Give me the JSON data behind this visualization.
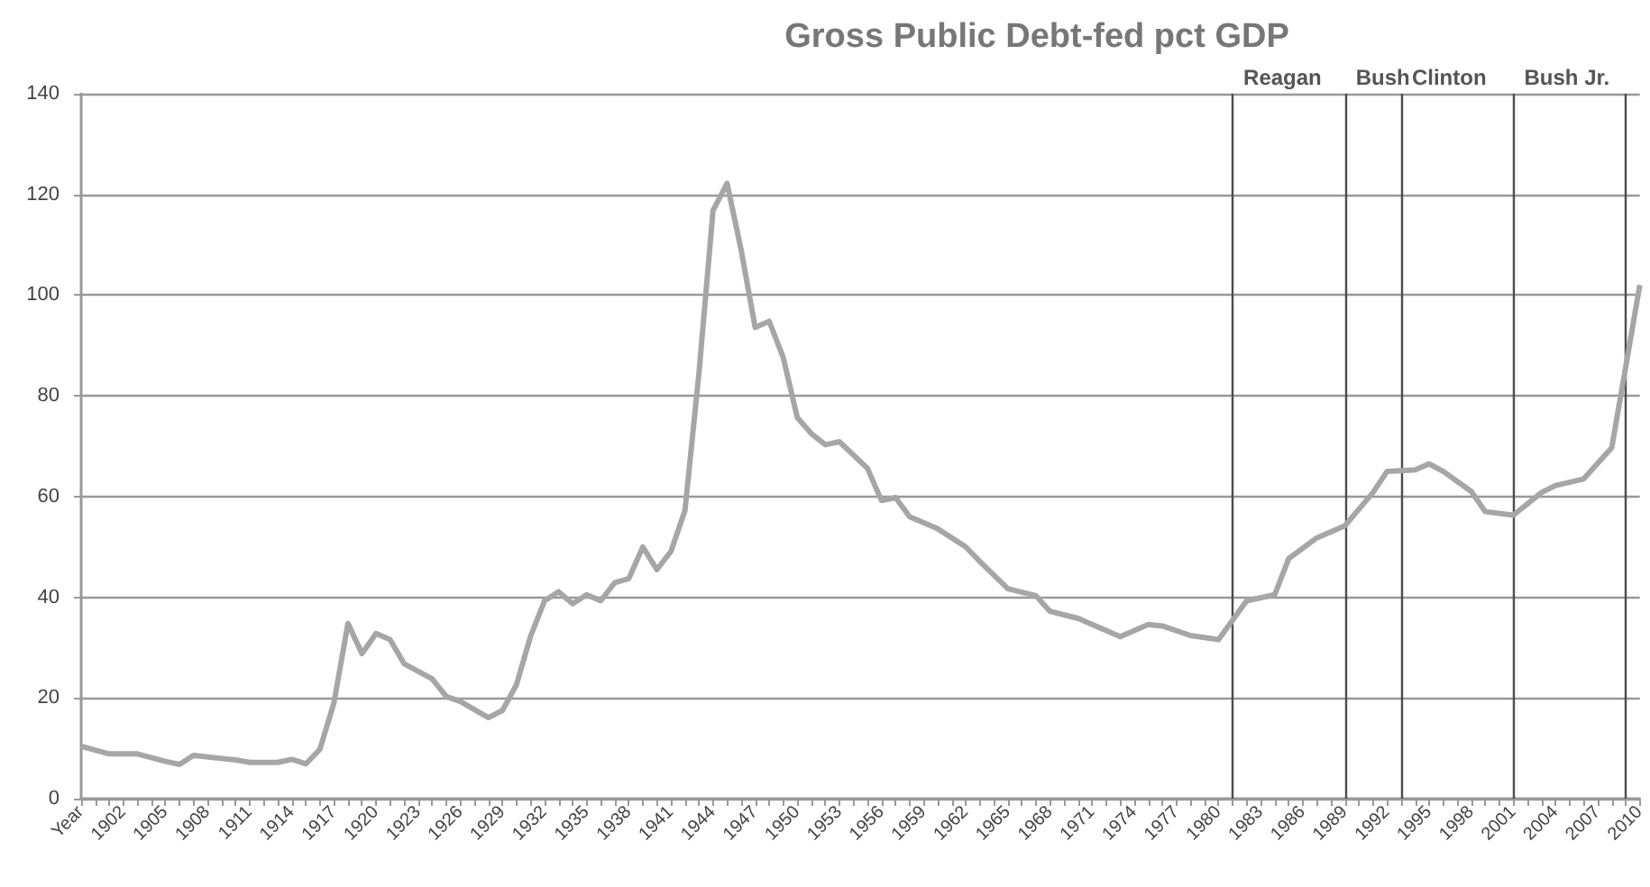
{
  "chart_data": {
    "type": "line",
    "title": "Gross Public Debt-fed pct GDP",
    "x": [
      1899,
      1901,
      1903,
      1905,
      1906,
      1907,
      1910,
      1911,
      1913,
      1914,
      1915,
      1916,
      1917,
      1918,
      1919,
      1920,
      1921,
      1922,
      1924,
      1925,
      1926,
      1928,
      1929,
      1930,
      1931,
      1932,
      1933,
      1934,
      1935,
      1936,
      1937,
      1938,
      1939,
      1940,
      1941,
      1942,
      1943,
      1944,
      1945,
      1946,
      1947,
      1948,
      1949,
      1950,
      1951,
      1952,
      1953,
      1955,
      1956,
      1957,
      1958,
      1960,
      1962,
      1963,
      1965,
      1967,
      1968,
      1970,
      1973,
      1975,
      1976,
      1978,
      1980,
      1982,
      1984,
      1985,
      1987,
      1989,
      1991,
      1992,
      1994,
      1995,
      1996,
      1998,
      1999,
      2001,
      2003,
      2004,
      2006,
      2008,
      2009,
      2010
    ],
    "series": [
      {
        "color": "#a6a6a6",
        "values": [
          10.4,
          8.9,
          8.9,
          7.4,
          6.8,
          8.6,
          7.7,
          7.2,
          7.2,
          7.8,
          6.9,
          9.8,
          19,
          34.8,
          28.8,
          32.8,
          31.6,
          26.8,
          23.8,
          20.3,
          19.3,
          16.1,
          17.5,
          22.6,
          32.2,
          39.3,
          41.1,
          38.7,
          40.5,
          39.3,
          42.9,
          43.7,
          50,
          45.5,
          49.1,
          57.2,
          84.6,
          116.8,
          122.2,
          109,
          93.6,
          94.8,
          87.6,
          75.7,
          72.5,
          70.3,
          70.9,
          65.6,
          59.2,
          59.8,
          56,
          53.6,
          50,
          47.1,
          41.7,
          40.3,
          37.2,
          35.8,
          32.2,
          34.6,
          34.3,
          32.4,
          31.6,
          39.3,
          40.5,
          47.7,
          51.8,
          54.2,
          60.8,
          65,
          65.3,
          66.5,
          65,
          61,
          57,
          56.3,
          60.8,
          62.2,
          63.5,
          69.7,
          85.8,
          102
        ]
      }
    ],
    "xlim": [
      1899,
      2010
    ],
    "xticks": [
      {
        "value": 1899,
        "label": "Year"
      },
      {
        "value": 1900,
        "label": null
      },
      {
        "value": 1901,
        "label": null
      },
      1902,
      {
        "value": 1903,
        "label": null
      },
      {
        "value": 1904,
        "label": null
      },
      1905,
      {
        "value": 1906,
        "label": null
      },
      {
        "value": 1907,
        "label": null
      },
      1908,
      {
        "value": 1909,
        "label": null
      },
      {
        "value": 1910,
        "label": null
      },
      1911,
      {
        "value": 1912,
        "label": null
      },
      {
        "value": 1913,
        "label": null
      },
      1914,
      {
        "value": 1915,
        "label": null
      },
      {
        "value": 1916,
        "label": null
      },
      1917,
      {
        "value": 1918,
        "label": null
      },
      {
        "value": 1919,
        "label": null
      },
      1920,
      {
        "value": 1921,
        "label": null
      },
      {
        "value": 1922,
        "label": null
      },
      1923,
      {
        "value": 1924,
        "label": null
      },
      {
        "value": 1925,
        "label": null
      },
      1926,
      {
        "value": 1927,
        "label": null
      },
      {
        "value": 1928,
        "label": null
      },
      1929,
      {
        "value": 1930,
        "label": null
      },
      {
        "value": 1931,
        "label": null
      },
      1932,
      {
        "value": 1933,
        "label": null
      },
      {
        "value": 1934,
        "label": null
      },
      1935,
      {
        "value": 1936,
        "label": null
      },
      {
        "value": 1937,
        "label": null
      },
      1938,
      {
        "value": 1939,
        "label": null
      },
      {
        "value": 1940,
        "label": null
      },
      1941,
      {
        "value": 1942,
        "label": null
      },
      {
        "value": 1943,
        "label": null
      },
      1944,
      {
        "value": 1945,
        "label": null
      },
      {
        "value": 1946,
        "label": null
      },
      1947,
      {
        "value": 1948,
        "label": null
      },
      {
        "value": 1949,
        "label": null
      },
      1950,
      {
        "value": 1951,
        "label": null
      },
      {
        "value": 1952,
        "label": null
      },
      1953,
      {
        "value": 1954,
        "label": null
      },
      {
        "value": 1955,
        "label": null
      },
      1956,
      {
        "value": 1957,
        "label": null
      },
      {
        "value": 1958,
        "label": null
      },
      1959,
      {
        "value": 1960,
        "label": null
      },
      {
        "value": 1961,
        "label": null
      },
      1962,
      {
        "value": 1963,
        "label": null
      },
      {
        "value": 1964,
        "label": null
      },
      1965,
      {
        "value": 1966,
        "label": null
      },
      {
        "value": 1967,
        "label": null
      },
      1968,
      {
        "value": 1969,
        "label": null
      },
      {
        "value": 1970,
        "label": null
      },
      1971,
      {
        "value": 1972,
        "label": null
      },
      {
        "value": 1973,
        "label": null
      },
      1974,
      {
        "value": 1975,
        "label": null
      },
      {
        "value": 1976,
        "label": null
      },
      1977,
      {
        "value": 1978,
        "label": null
      },
      {
        "value": 1979,
        "label": null
      },
      1980,
      {
        "value": 1981,
        "label": null
      },
      {
        "value": 1982,
        "label": null
      },
      1983,
      {
        "value": 1984,
        "label": null
      },
      {
        "value": 1985,
        "label": null
      },
      1986,
      {
        "value": 1987,
        "label": null
      },
      {
        "value": 1988,
        "label": null
      },
      1989,
      {
        "value": 1990,
        "label": null
      },
      {
        "value": 1991,
        "label": null
      },
      1992,
      {
        "value": 1993,
        "label": null
      },
      {
        "value": 1994,
        "label": null
      },
      1995,
      {
        "value": 1996,
        "label": null
      },
      {
        "value": 1997,
        "label": null
      },
      1998,
      {
        "value": 1999,
        "label": null
      },
      {
        "value": 2000,
        "label": null
      },
      2001,
      {
        "value": 2002,
        "label": null
      },
      {
        "value": 2003,
        "label": null
      },
      2004,
      {
        "value": 2005,
        "label": null
      },
      {
        "value": 2006,
        "label": null
      },
      2007,
      {
        "value": 2008,
        "label": null
      },
      {
        "value": 2009,
        "label": null
      },
      2010
    ],
    "ylim": [
      0,
      140
    ],
    "yticks": [
      0,
      20,
      40,
      60,
      80,
      100,
      120,
      140
    ],
    "grid": "y",
    "marker": "none",
    "ref_lines": [
      {
        "axis": "x",
        "value": 1981,
        "label": "Reagan",
        "color": "#4d4d4d"
      },
      {
        "axis": "x",
        "value": 1989,
        "label": "Bush",
        "color": "#4d4d4d"
      },
      {
        "axis": "x",
        "value": 1993,
        "label": "Clinton",
        "color": "#4d4d4d"
      },
      {
        "axis": "x",
        "value": 2001,
        "label": "Bush Jr.",
        "color": "#4d4d4d"
      },
      {
        "axis": "x",
        "value": 2009,
        "label": null,
        "color": "#4d4d4d"
      }
    ]
  }
}
